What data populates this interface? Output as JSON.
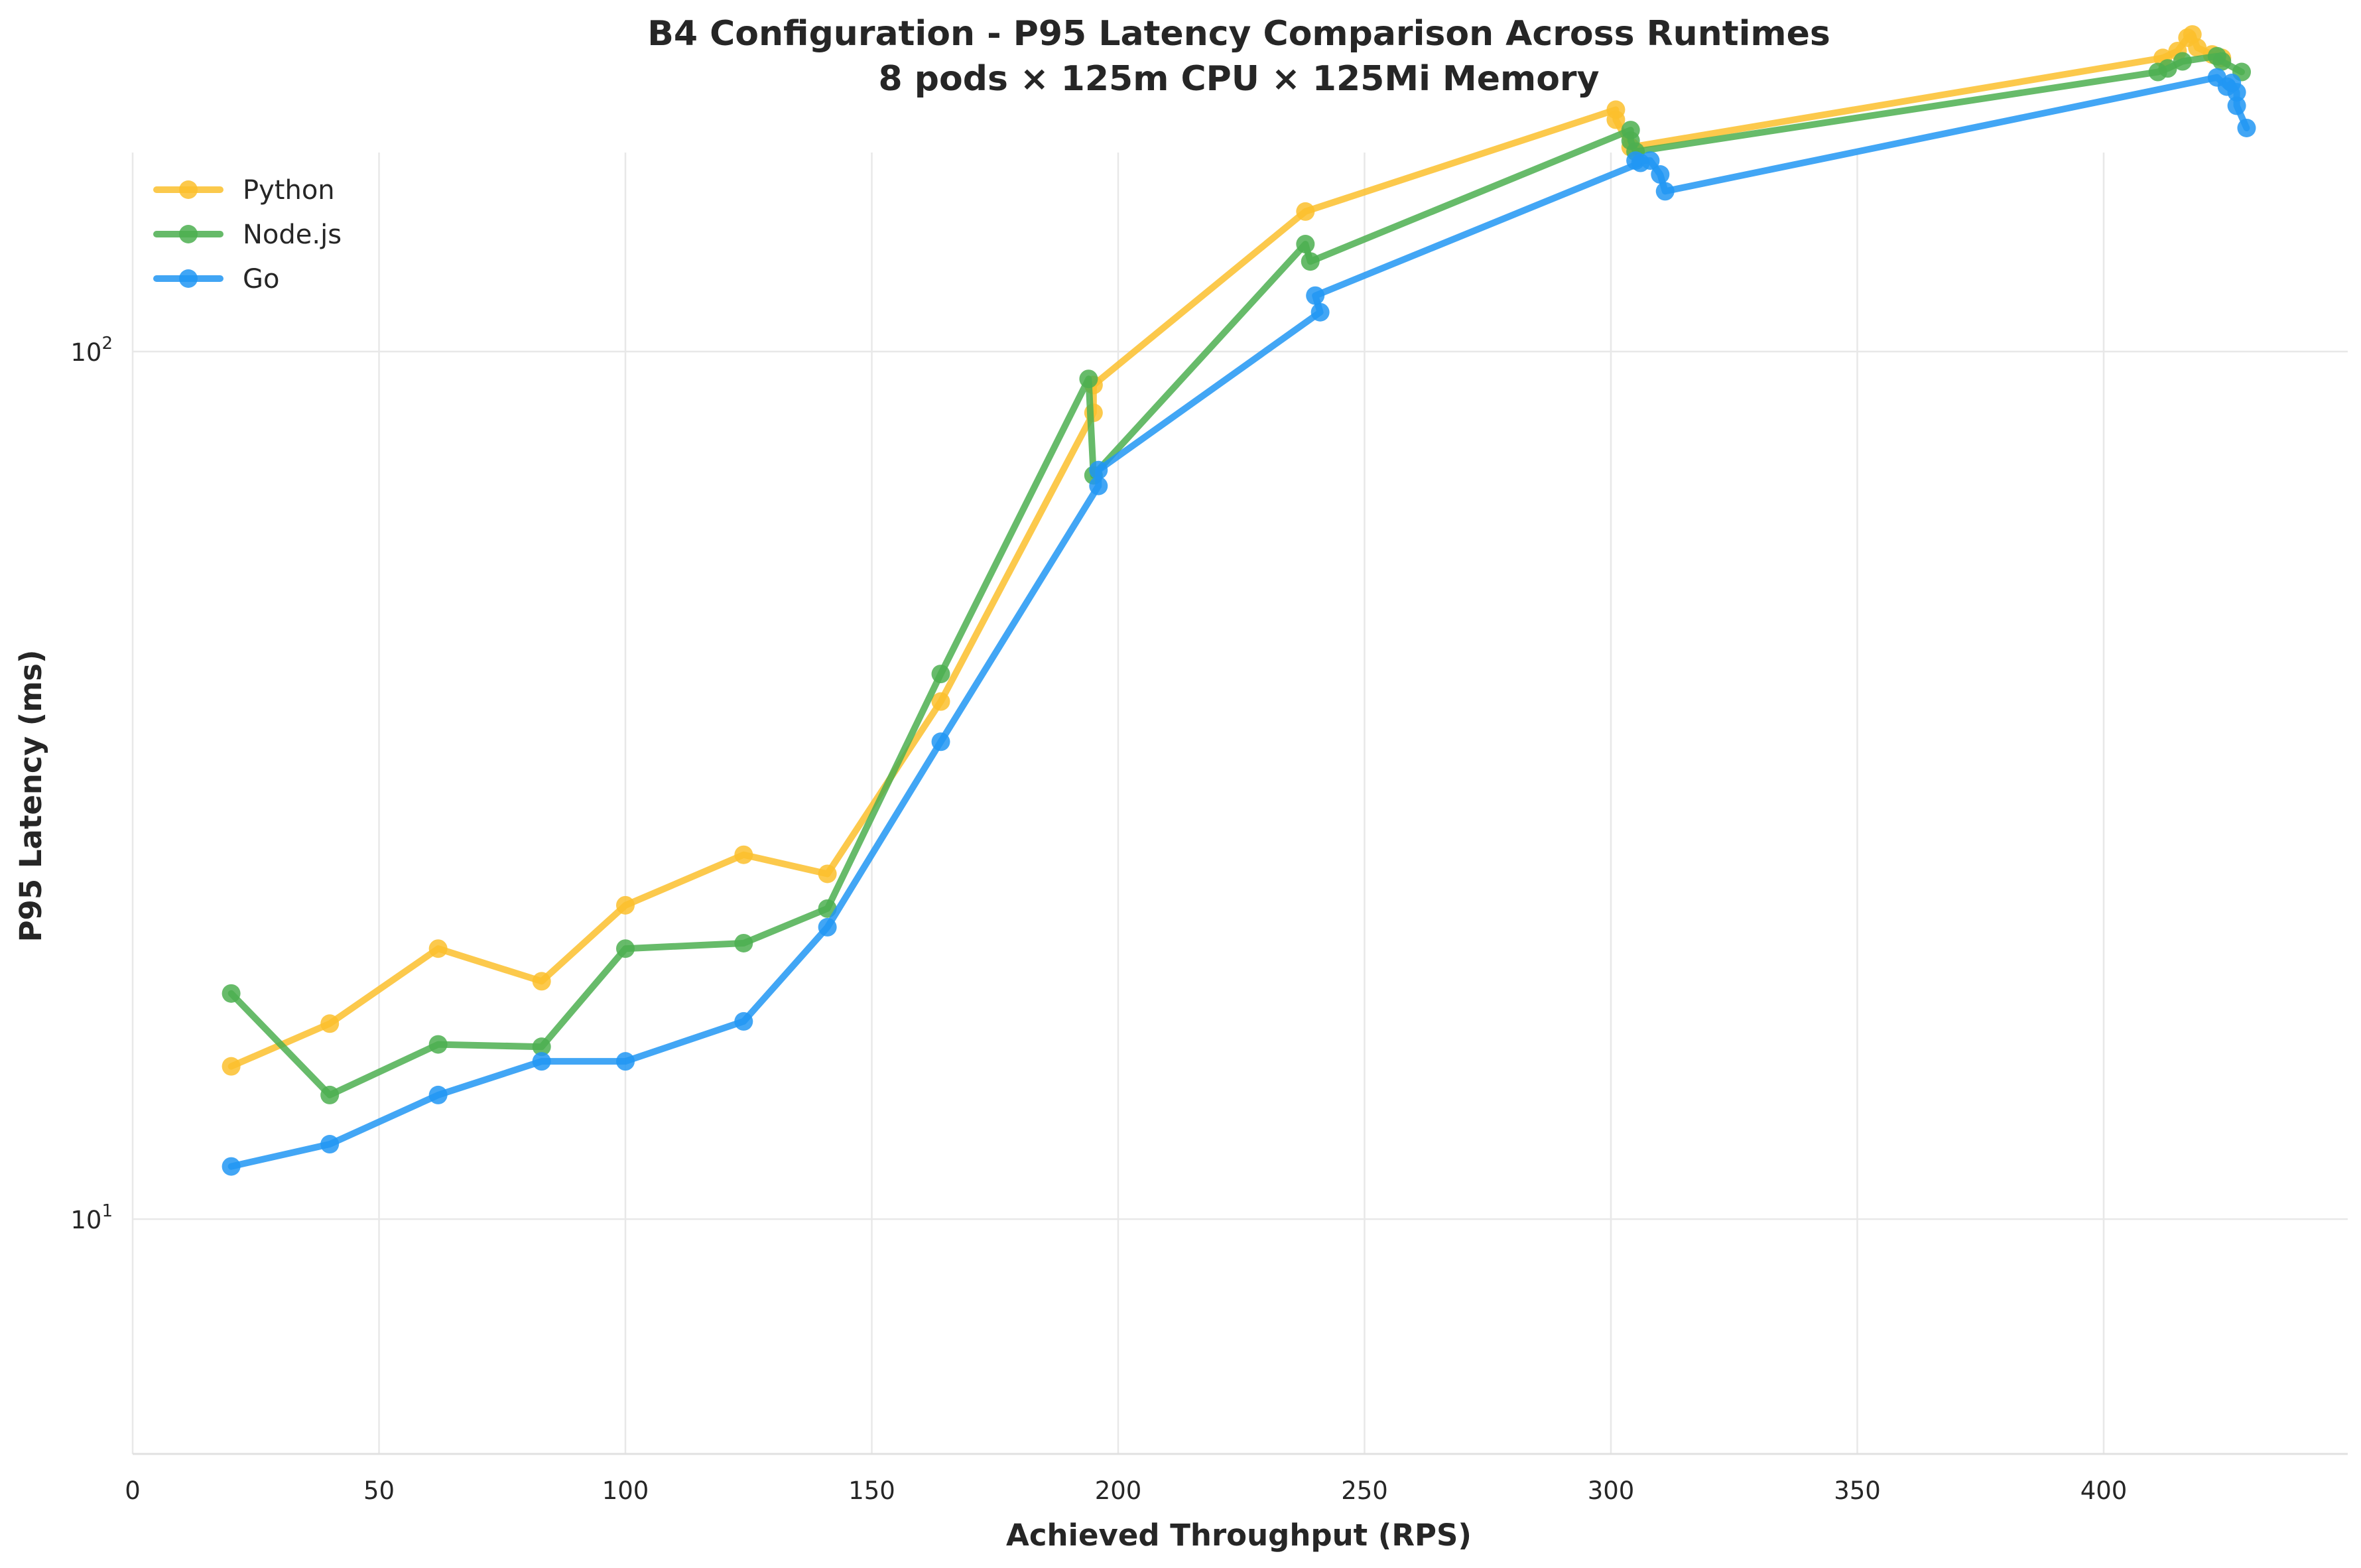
{
  "chart_data": {
    "type": "line",
    "title": "B4 Configuration - P95 Latency Comparison Across Runtimes",
    "subtitle": "8 pods × 125m CPU × 125Mi Memory",
    "xlabel": "Achieved Throughput (RPS)",
    "ylabel": "P95 Latency (ms)",
    "xlim": [
      0,
      447
    ],
    "ylim": [
      10,
      260
    ],
    "yscale": "log",
    "xticks": [
      "0",
      "50",
      "100",
      "150",
      "200",
      "250",
      "300",
      "350",
      "400"
    ],
    "yticks": [
      {
        "base": "10",
        "exp": "1",
        "value": 10
      },
      {
        "base": "10",
        "exp": "2",
        "value": 100
      }
    ],
    "grid": true,
    "legend_position": "top-left",
    "series": [
      {
        "name": "Python",
        "color": "#FBC02D",
        "x": [
          20,
          40,
          62,
          83,
          100,
          124,
          141,
          164,
          195,
          195,
          238,
          301,
          301,
          304,
          412,
          415,
          417,
          418,
          419,
          422,
          424
        ],
        "y": [
          15.0,
          16.8,
          20.5,
          18.8,
          23.0,
          26.3,
          25.0,
          39.5,
          85.0,
          91.5,
          145.0,
          190.0,
          185.0,
          172.0,
          218.0,
          222.0,
          230.0,
          232.0,
          224.0,
          220.0,
          218.0
        ]
      },
      {
        "name": "Node.js",
        "color": "#4CAF50",
        "x": [
          20,
          40,
          62,
          83,
          100,
          124,
          141,
          164,
          194,
          195,
          238,
          239,
          304,
          304,
          305,
          411,
          413,
          416,
          423,
          424,
          428
        ],
        "y": [
          18.2,
          13.9,
          15.9,
          15.8,
          20.5,
          20.8,
          22.8,
          42.5,
          93.0,
          72.0,
          133.0,
          127.0,
          180.0,
          175.0,
          170.0,
          210.0,
          212.0,
          216.0,
          219.0,
          216.0,
          210.0
        ]
      },
      {
        "name": "Go",
        "color": "#2196F3",
        "x": [
          20,
          40,
          62,
          83,
          100,
          124,
          141,
          164,
          196,
          196,
          241,
          240,
          306,
          305,
          308,
          310,
          311,
          423,
          425,
          426,
          427,
          427,
          429
        ],
        "y": [
          11.5,
          12.2,
          13.9,
          15.2,
          15.2,
          16.9,
          21.7,
          35.5,
          70.0,
          73.0,
          111.0,
          116.0,
          165.0,
          166.0,
          166.0,
          160.0,
          153.0,
          207.0,
          202.0,
          204.0,
          199.0,
          192.0,
          181.0
        ]
      }
    ]
  }
}
